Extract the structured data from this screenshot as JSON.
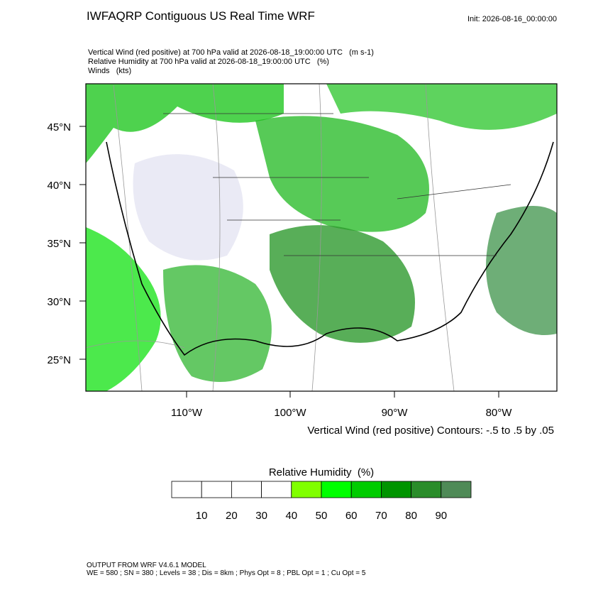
{
  "header": {
    "title": "IWFAQRP Contiguous US Real Time WRF",
    "init": "Init: 2026-08-16_00:00:00"
  },
  "fields": [
    "Vertical Wind (red positive) at 700 hPa valid at 2026-08-18_19:00:00 UTC   (m s-1)",
    "Relative Humidity at 700 hPa valid at 2026-08-18_19:00:00 UTC   (%)",
    "Winds   (kts)"
  ],
  "map": {
    "lat_labels": [
      "45°N",
      "40°N",
      "35°N",
      "30°N",
      "25°N"
    ],
    "lon_labels": [
      "110°W",
      "100°W",
      "90°W",
      "80°W"
    ],
    "contour_note": "Vertical Wind (red positive) Contours: -.5 to .5 by .05"
  },
  "colorbar": {
    "title": "Relative Humidity  (%)",
    "colors": [
      "#ffffff",
      "#ffffff",
      "#ffffff",
      "#ffffff",
      "#80ff00",
      "#00ff00",
      "#00cc00",
      "#009400",
      "#2a8c2a",
      "#4f8a57"
    ],
    "labels": [
      "10",
      "20",
      "30",
      "40",
      "50",
      "60",
      "70",
      "80",
      "90"
    ]
  },
  "footer": [
    "OUTPUT FROM WRF V4.6.1 MODEL",
    "WE = 580 ; SN = 380 ; Levels = 38 ; Dis = 8km ; Phys Opt = 8 ; PBL Opt = 1 ; Cu Opt = 5"
  ]
}
